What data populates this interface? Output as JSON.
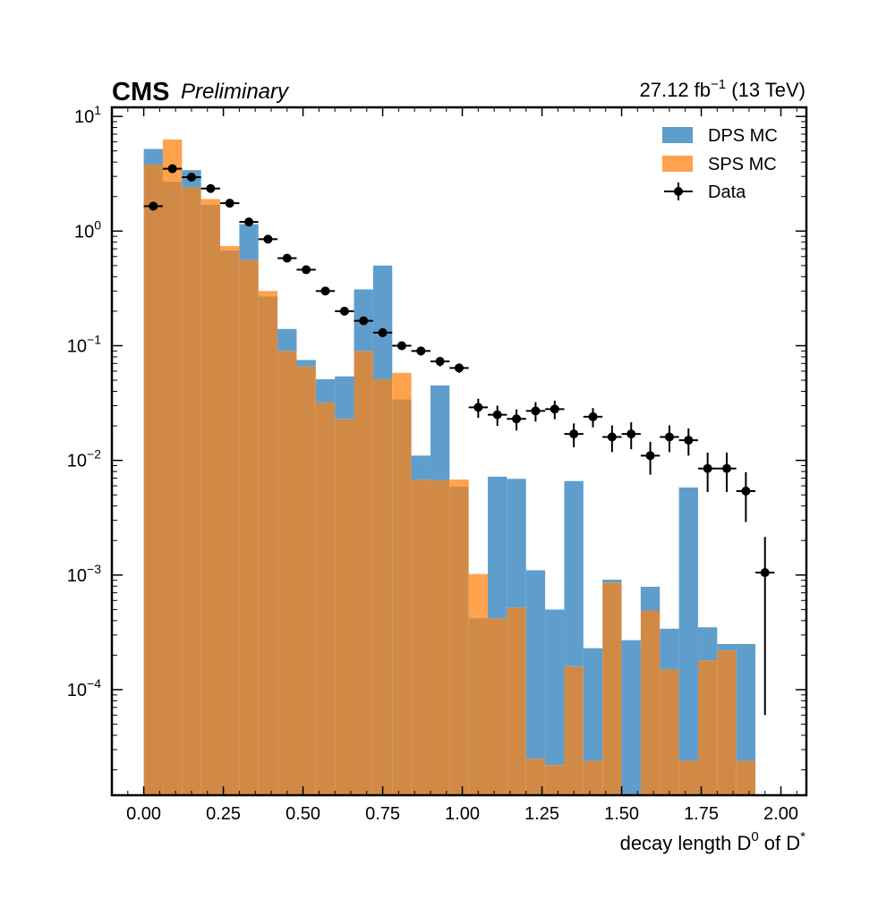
{
  "header": {
    "experiment": "CMS",
    "status": "Preliminary",
    "lumi": "27.12 fb",
    "lumi_exponent": "−1",
    "energy": " (13 TeV)"
  },
  "colors": {
    "dps": "#5f9ecc",
    "sps": "#ffa24d",
    "overlap": "#d18a46",
    "data": "#000000"
  },
  "chart_data": {
    "type": "bar",
    "histtype": "stacked-overlay step histogram with data points",
    "xlabel_main": "decay length D",
    "xlabel_sup1": "0",
    "xlabel_mid": " of D",
    "xlabel_sup2": "*",
    "ylabel": "",
    "xlim": [
      -0.1,
      2.08
    ],
    "ylim": [
      1.2e-05,
      12
    ],
    "yscale": "log",
    "legend_position": "top-right",
    "bin_edges": [
      0.0,
      0.06,
      0.12,
      0.18,
      0.24,
      0.3,
      0.36,
      0.42,
      0.48,
      0.54,
      0.6,
      0.66,
      0.72,
      0.78,
      0.84,
      0.9,
      0.96,
      1.02,
      1.08,
      1.14,
      1.2,
      1.26,
      1.32,
      1.38,
      1.44,
      1.5,
      1.56,
      1.62,
      1.68,
      1.74,
      1.8,
      1.86,
      1.92
    ],
    "xticks": [
      0.0,
      0.25,
      0.5,
      0.75,
      1.0,
      1.25,
      1.5,
      1.75,
      2.0
    ],
    "xtick_labels": [
      "0.00",
      "0.25",
      "0.50",
      "0.75",
      "1.00",
      "1.25",
      "1.50",
      "1.75",
      "2.00"
    ],
    "yticks": [
      {
        "base": "10",
        "exp": "1",
        "value": 10
      },
      {
        "base": "10",
        "exp": "0",
        "value": 1
      },
      {
        "base": "10",
        "exp": "−1",
        "value": 0.1
      },
      {
        "base": "10",
        "exp": "−2",
        "value": 0.01
      },
      {
        "base": "10",
        "exp": "−3",
        "value": 0.001
      },
      {
        "base": "10",
        "exp": "−4",
        "value": 0.0001
      }
    ],
    "series": [
      {
        "name": "DPS MC",
        "values": [
          5.2,
          2.7,
          3.4,
          1.7,
          0.68,
          1.15,
          0.27,
          0.14,
          0.075,
          0.051,
          0.054,
          0.31,
          0.5,
          0.034,
          0.011,
          0.045,
          0.0059,
          0.00042,
          0.0072,
          0.0069,
          0.0011,
          0.0005,
          0.0066,
          0.00023,
          0.00091,
          0.00027,
          0.00079,
          0.00034,
          0.0058,
          0.00035,
          0.00025,
          0.00025
        ]
      },
      {
        "name": "SPS MC",
        "values": [
          3.8,
          6.3,
          2.4,
          1.9,
          0.74,
          0.56,
          0.3,
          0.09,
          0.066,
          0.032,
          0.023,
          0.09,
          0.051,
          0.058,
          0.0068,
          0.0067,
          0.0068,
          0.00102,
          0.00042,
          0.00052,
          2.5e-05,
          2.2e-05,
          0.00016,
          2.4e-05,
          0.00086,
          1.1e-05,
          0.00049,
          0.00015,
          2.4e-05,
          0.00018,
          0.00022,
          2.4e-05
        ]
      }
    ],
    "data_points": {
      "name": "Data",
      "x": [
        0.03,
        0.09,
        0.15,
        0.21,
        0.27,
        0.33,
        0.39,
        0.45,
        0.51,
        0.57,
        0.63,
        0.69,
        0.75,
        0.81,
        0.87,
        0.93,
        0.99,
        1.05,
        1.11,
        1.17,
        1.23,
        1.29,
        1.35,
        1.41,
        1.47,
        1.53,
        1.59,
        1.65,
        1.71,
        1.77,
        1.83,
        1.89,
        1.95
      ],
      "y": [
        1.65,
        3.5,
        2.95,
        2.35,
        1.75,
        1.2,
        0.85,
        0.58,
        0.46,
        0.3,
        0.2,
        0.165,
        0.13,
        0.1,
        0.09,
        0.073,
        0.064,
        0.029,
        0.025,
        0.023,
        0.027,
        0.028,
        0.017,
        0.024,
        0.016,
        0.017,
        0.011,
        0.016,
        0.015,
        0.0085,
        0.0085,
        0.0054,
        0.00105
      ],
      "yerr_low": [
        0.05,
        0.09,
        0.08,
        0.07,
        0.06,
        0.05,
        0.04,
        0.03,
        0.03,
        0.02,
        0.015,
        0.012,
        0.011,
        0.008,
        0.008,
        0.007,
        0.006,
        0.0055,
        0.005,
        0.0048,
        0.0052,
        0.0052,
        0.004,
        0.0046,
        0.0042,
        0.0045,
        0.0035,
        0.0042,
        0.004,
        0.0032,
        0.0032,
        0.0025,
        0.00099
      ],
      "yerr_high": [
        0.05,
        0.09,
        0.08,
        0.07,
        0.06,
        0.05,
        0.04,
        0.03,
        0.03,
        0.02,
        0.015,
        0.012,
        0.011,
        0.008,
        0.008,
        0.007,
        0.006,
        0.0055,
        0.005,
        0.0048,
        0.0052,
        0.0052,
        0.004,
        0.0046,
        0.0042,
        0.0045,
        0.0035,
        0.0042,
        0.004,
        0.0032,
        0.0032,
        0.0025,
        0.0011
      ],
      "xerr": 0.03
    }
  }
}
